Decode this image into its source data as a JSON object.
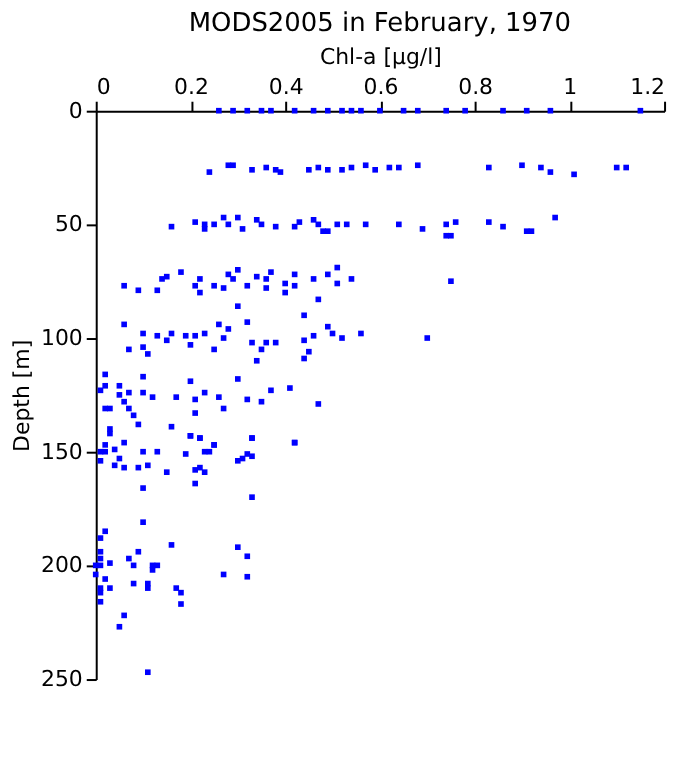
{
  "chart_data": {
    "type": "scatter",
    "title": "MODS2005 in February, 1970",
    "xlabel": "Chl-a [μg/l]",
    "ylabel": "Depth [m]",
    "xlim": [
      0,
      1.2
    ],
    "xticks": [
      0,
      0.2,
      0.4,
      0.6,
      0.8,
      1,
      1.2
    ],
    "ylim": [
      250,
      0
    ],
    "yticks": [
      0,
      50,
      100,
      150,
      200,
      250
    ],
    "grid": false,
    "legend": false,
    "marker": "square",
    "series": [
      {
        "color": "#0000ff",
        "x": [
          0.26,
          0.29,
          0.32,
          0.35,
          0.37,
          0.42,
          0.46,
          0.49,
          0.52,
          0.54,
          0.56,
          0.6,
          0.65,
          0.68,
          0.74,
          0.78,
          0.86,
          0.91,
          0.96,
          1.15,
          0.24,
          0.28,
          0.29,
          0.33,
          0.36,
          0.38,
          0.39,
          0.45,
          0.47,
          0.49,
          0.52,
          0.54,
          0.57,
          0.59,
          0.62,
          0.64,
          0.68,
          0.83,
          0.9,
          0.94,
          0.96,
          1.01,
          1.1,
          1.12,
          0.16,
          0.21,
          0.23,
          0.25,
          0.27,
          0.28,
          0.3,
          0.31,
          0.34,
          0.35,
          0.38,
          0.42,
          0.43,
          0.46,
          0.47,
          0.49,
          0.51,
          0.53,
          0.57,
          0.64,
          0.69,
          0.74,
          0.76,
          0.75,
          0.83,
          0.86,
          0.91,
          0.97,
          0.23,
          0.48,
          0.74,
          0.92,
          0.18,
          0.06,
          0.09,
          0.13,
          0.14,
          0.15,
          0.22,
          0.21,
          0.22,
          0.25,
          0.27,
          0.28,
          0.3,
          0.29,
          0.32,
          0.34,
          0.36,
          0.36,
          0.37,
          0.4,
          0.4,
          0.42,
          0.42,
          0.46,
          0.47,
          0.49,
          0.51,
          0.51,
          0.54,
          0.75,
          0.44,
          0.3,
          0.32,
          0.06,
          0.07,
          0.1,
          0.1,
          0.11,
          0.13,
          0.15,
          0.16,
          0.19,
          0.21,
          0.2,
          0.23,
          0.25,
          0.26,
          0.27,
          0.28,
          0.33,
          0.35,
          0.34,
          0.36,
          0.38,
          0.44,
          0.44,
          0.45,
          0.46,
          0.49,
          0.5,
          0.52,
          0.56,
          0.7,
          0.02,
          0.02,
          0.01,
          0.05,
          0.05,
          0.07,
          0.02,
          0.03,
          0.06,
          0.07,
          0.08,
          0.1,
          0.1,
          0.12,
          0.09,
          0.17,
          0.2,
          0.21,
          0.21,
          0.23,
          0.26,
          0.27,
          0.3,
          0.32,
          0.35,
          0.37,
          0.41,
          0.47,
          0.03,
          0.16,
          0.2,
          0.22,
          0.25,
          0.33,
          0.42,
          0.03,
          0.06,
          0.02,
          0.01,
          0.02,
          0.04,
          0.01,
          0.04,
          0.05,
          0.06,
          0.09,
          0.1,
          0.11,
          0.13,
          0.15,
          0.1,
          0.2,
          0.22,
          0.19,
          0.21,
          0.21,
          0.22,
          0.23,
          0.23,
          0.24,
          0.25,
          0.3,
          0.31,
          0.32,
          0.33,
          0.33,
          0.33,
          0.42,
          0.1,
          0.02,
          0.01,
          0.01,
          0.01,
          0.03,
          0.01,
          0.0,
          0.0,
          0.02,
          0.01,
          0.03,
          0.01,
          0.01,
          0.07,
          0.09,
          0.08,
          0.08,
          0.11,
          0.11,
          0.12,
          0.12,
          0.13,
          0.16,
          0.17,
          0.18,
          0.18,
          0.06,
          0.05,
          0.27,
          0.3,
          0.32,
          0.32,
          0.11
        ],
        "values": [
          0,
          0,
          0,
          0,
          0,
          0,
          0,
          0,
          0,
          0,
          0,
          0,
          0,
          0,
          0,
          0,
          0,
          0,
          0,
          0,
          27,
          24,
          24,
          26,
          25,
          26,
          27,
          26,
          25,
          26,
          26,
          25,
          24,
          26,
          25,
          25,
          24,
          25,
          24,
          25,
          27,
          28,
          25,
          25,
          51,
          49,
          50,
          50,
          47,
          50,
          47,
          52,
          48,
          50,
          51,
          51,
          49,
          48,
          50,
          53,
          50,
          50,
          50,
          50,
          52,
          50,
          49,
          55,
          49,
          51,
          53,
          47,
          52,
          53,
          55,
          53,
          71,
          77,
          79,
          79,
          74,
          73,
          74,
          77,
          80,
          77,
          78,
          72,
          70,
          74,
          77,
          73,
          74,
          78,
          71,
          76,
          80,
          77,
          72,
          74,
          83,
          72,
          69,
          76,
          74,
          75,
          90,
          86,
          93,
          94,
          105,
          98,
          104,
          107,
          99,
          101,
          98,
          99,
          99,
          103,
          98,
          105,
          94,
          100,
          96,
          102,
          105,
          110,
          102,
          102,
          101,
          109,
          106,
          99,
          95,
          98,
          100,
          98,
          100,
          116,
          121,
          123,
          121,
          125,
          124,
          131,
          131,
          128,
          131,
          134,
          117,
          124,
          126,
          138,
          126,
          119,
          127,
          133,
          124,
          126,
          131,
          118,
          127,
          128,
          123,
          122,
          129,
          140,
          139,
          143,
          144,
          147,
          144,
          146,
          142,
          146,
          147,
          150,
          150,
          149,
          154,
          156,
          153,
          157,
          157,
          150,
          156,
          150,
          159,
          166,
          143,
          144,
          151,
          164,
          158,
          157,
          159,
          150,
          150,
          147,
          154,
          153,
          151,
          152,
          144,
          170,
          146,
          181,
          185,
          188,
          194,
          197,
          199,
          200,
          200,
          204,
          206,
          210,
          210,
          212,
          216,
          197,
          194,
          200,
          208,
          208,
          210,
          202,
          200,
          200,
          191,
          210,
          212,
          217,
          222,
          227,
          204,
          192,
          196,
          205,
          247
        ]
      }
    ]
  }
}
